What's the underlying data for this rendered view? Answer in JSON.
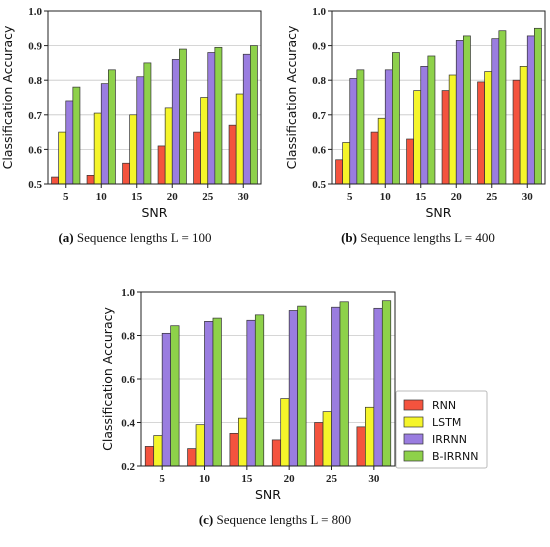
{
  "chart_data": [
    {
      "type": "bar",
      "caption_label": "(a)",
      "caption_text": "Sequence lengths L = 100",
      "xlabel": "SNR",
      "ylabel": "Classification Accuracy",
      "ylim": [
        0.5,
        1.0
      ],
      "yticks": [
        "0.5",
        "0.6",
        "0.7",
        "0.8",
        "0.9",
        "1.0"
      ],
      "grid": true,
      "categories": [
        "5",
        "10",
        "15",
        "20",
        "25",
        "30"
      ],
      "series": [
        {
          "name": "RNN",
          "color": "#f4533e",
          "values": [
            0.52,
            0.525,
            0.56,
            0.61,
            0.65,
            0.67
          ]
        },
        {
          "name": "LSTM",
          "color": "#f5f52a",
          "values": [
            0.65,
            0.705,
            0.7,
            0.72,
            0.75,
            0.76
          ]
        },
        {
          "name": "IRRNN",
          "color": "#9a7de0",
          "values": [
            0.74,
            0.79,
            0.81,
            0.86,
            0.88,
            0.875
          ]
        },
        {
          "name": "B-IRRNN",
          "color": "#8ed14a",
          "values": [
            0.78,
            0.83,
            0.85,
            0.89,
            0.895,
            0.9
          ]
        }
      ]
    },
    {
      "type": "bar",
      "caption_label": "(b)",
      "caption_text": "Sequence lengths L = 400",
      "xlabel": "SNR",
      "ylabel": "Classification Accuracy",
      "ylim": [
        0.5,
        1.0
      ],
      "yticks": [
        "0.5",
        "0.6",
        "0.7",
        "0.8",
        "0.9",
        "1.0"
      ],
      "grid": true,
      "categories": [
        "5",
        "10",
        "15",
        "20",
        "25",
        "30"
      ],
      "series": [
        {
          "name": "RNN",
          "color": "#f4533e",
          "values": [
            0.57,
            0.65,
            0.63,
            0.77,
            0.795,
            0.8
          ]
        },
        {
          "name": "LSTM",
          "color": "#f5f52a",
          "values": [
            0.62,
            0.69,
            0.77,
            0.815,
            0.825,
            0.84
          ]
        },
        {
          "name": "IRRNN",
          "color": "#9a7de0",
          "values": [
            0.805,
            0.83,
            0.84,
            0.915,
            0.92,
            0.928
          ]
        },
        {
          "name": "B-IRRNN",
          "color": "#8ed14a",
          "values": [
            0.83,
            0.88,
            0.87,
            0.928,
            0.943,
            0.95
          ]
        }
      ]
    },
    {
      "type": "bar",
      "caption_label": "(c)",
      "caption_text": "Sequence lengths L = 800",
      "xlabel": "SNR",
      "ylabel": "Classification Accuracy",
      "ylim": [
        0.2,
        1.0
      ],
      "yticks": [
        "0.2",
        "0.4",
        "0.6",
        "0.8",
        "1.0"
      ],
      "grid": true,
      "legend_position": "right",
      "categories": [
        "5",
        "10",
        "15",
        "20",
        "25",
        "30"
      ],
      "series": [
        {
          "name": "RNN",
          "color": "#f4533e",
          "values": [
            0.29,
            0.28,
            0.35,
            0.32,
            0.4,
            0.38
          ]
        },
        {
          "name": "LSTM",
          "color": "#f5f52a",
          "values": [
            0.34,
            0.39,
            0.42,
            0.51,
            0.45,
            0.47
          ]
        },
        {
          "name": "IRRNN",
          "color": "#9a7de0",
          "values": [
            0.81,
            0.865,
            0.87,
            0.915,
            0.93,
            0.925
          ]
        },
        {
          "name": "B-IRRNN",
          "color": "#8ed14a",
          "values": [
            0.845,
            0.88,
            0.895,
            0.935,
            0.955,
            0.96
          ]
        }
      ]
    }
  ],
  "legend": {
    "items": [
      {
        "label": "RNN",
        "color": "#f4533e"
      },
      {
        "label": "LSTM",
        "color": "#f5f52a"
      },
      {
        "label": "IRRNN",
        "color": "#9a7de0"
      },
      {
        "label": "B-IRRNN",
        "color": "#8ed14a"
      }
    ]
  }
}
